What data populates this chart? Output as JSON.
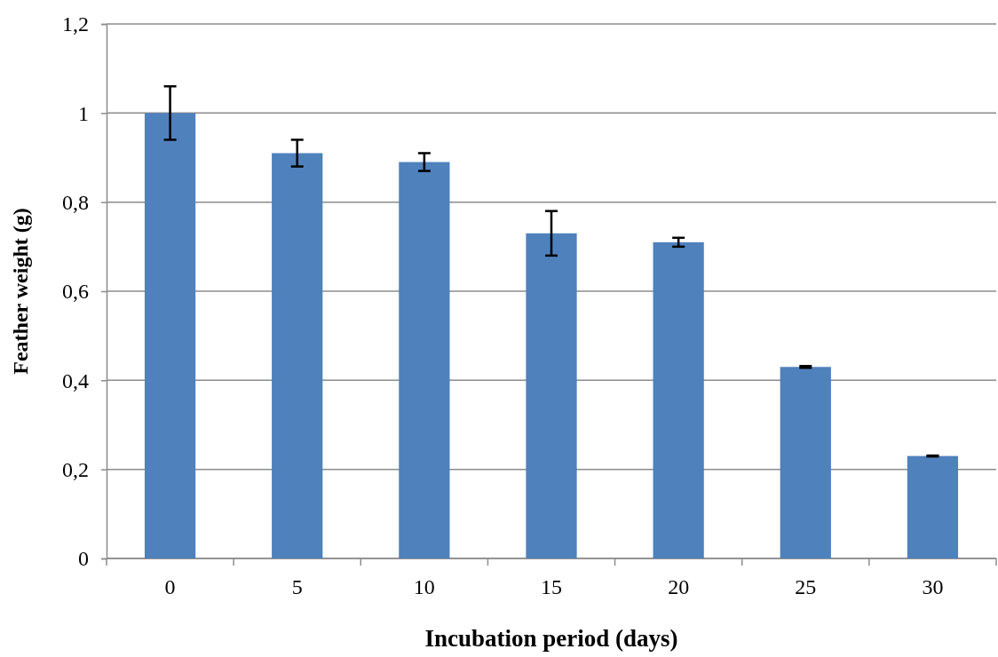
{
  "chart_data": {
    "type": "bar",
    "xlabel": "Incubation period (days)",
    "ylabel": "Feather weight (g)",
    "categories": [
      "0",
      "5",
      "10",
      "15",
      "20",
      "25",
      "30"
    ],
    "values": [
      1.0,
      0.91,
      0.89,
      0.73,
      0.71,
      0.43,
      0.23
    ],
    "errors": [
      0.06,
      0.03,
      0.02,
      0.05,
      0.01,
      0.002,
      0.001
    ],
    "color": "#4f81bd",
    "ylim": [
      0,
      1.2
    ],
    "yticks": [
      0,
      {
        "value": 0.2,
        "label": "0,2"
      },
      {
        "value": 0.4,
        "label": "0,4"
      },
      {
        "value": 0.6,
        "label": "0,6"
      },
      {
        "value": 0.8,
        "label": "0,8"
      },
      1,
      {
        "value": 1.2,
        "label": "1,2"
      }
    ],
    "grid": "y"
  }
}
